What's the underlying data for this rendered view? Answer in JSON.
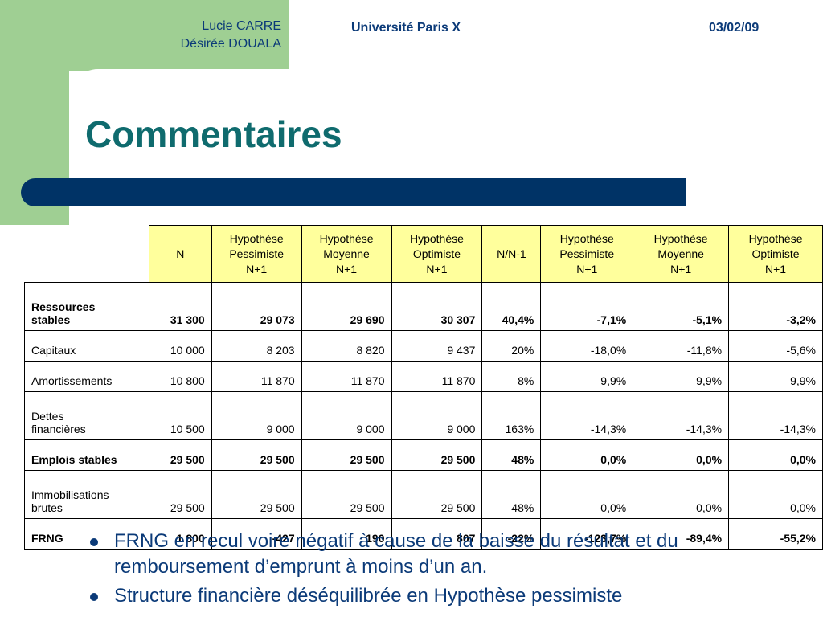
{
  "header": {
    "author1": "Lucie CARRE",
    "author2": "Désirée DOUALA",
    "university": "Université Paris X",
    "date": "03/02/09"
  },
  "slide": {
    "title": "Commentaires"
  },
  "table": {
    "headers": [
      "N",
      "Hypothèse Pessimiste N+1",
      "Hypothèse Moyenne N+1",
      "Hypothèse Optimiste N+1",
      "N/N-1",
      "Hypothèse Pessimiste N+1",
      "Hypothèse Moyenne N+1",
      "Hypothèse Optimiste N+1"
    ],
    "headers_lines": [
      [
        "N"
      ],
      [
        "Hypothèse",
        "Pessimiste",
        "N+1"
      ],
      [
        "Hypothèse",
        "Moyenne",
        "N+1"
      ],
      [
        "Hypothèse",
        "Optimiste",
        "N+1"
      ],
      [
        "N/N-1"
      ],
      [
        "Hypothèse",
        "Pessimiste",
        "N+1"
      ],
      [
        "Hypothèse",
        "Moyenne",
        "N+1"
      ],
      [
        "Hypothèse",
        "Optimiste",
        "N+1"
      ]
    ],
    "rows": [
      {
        "label": "Ressources stables",
        "label_lines": [
          "Ressources",
          "stables"
        ],
        "bold": true,
        "cells": [
          "31 300",
          "29 073",
          "29 690",
          "30 307",
          "40,4%",
          "-7,1%",
          "-5,1%",
          "-3,2%"
        ]
      },
      {
        "label": "Capitaux",
        "label_lines": [
          "Capitaux"
        ],
        "bold": false,
        "cells": [
          "10 000",
          "8 203",
          "8 820",
          "9 437",
          "20%",
          "-18,0%",
          "-11,8%",
          "-5,6%"
        ]
      },
      {
        "label": "Amortissements",
        "label_lines": [
          "Amortissements"
        ],
        "bold": false,
        "cells": [
          "10 800",
          "11 870",
          "11 870",
          "11 870",
          "8%",
          "9,9%",
          "9,9%",
          "9,9%"
        ]
      },
      {
        "label": "Dettes financières",
        "label_lines": [
          "Dettes",
          "financières"
        ],
        "bold": false,
        "cells": [
          "10 500",
          "9 000",
          "9 000",
          "9 000",
          "163%",
          "-14,3%",
          "-14,3%",
          "-14,3%"
        ]
      },
      {
        "label": "Emplois stables",
        "label_lines": [
          "Emplois stables"
        ],
        "bold": true,
        "cells": [
          "29 500",
          "29 500",
          "29 500",
          "29 500",
          "48%",
          "0,0%",
          "0,0%",
          "0,0%"
        ]
      },
      {
        "label": "Immobilisations brutes",
        "label_lines": [
          "Immobilisations",
          "brutes"
        ],
        "bold": false,
        "cells": [
          "29 500",
          "29 500",
          "29 500",
          "29 500",
          "48%",
          "0,0%",
          "0,0%",
          "0,0%"
        ]
      },
      {
        "label": "FRNG",
        "label_lines": [
          "FRNG"
        ],
        "bold": true,
        "cells": [
          "1 800",
          "-427",
          "190",
          "807",
          "-22%",
          "-123,7%",
          "-89,4%",
          "-55,2%"
        ]
      }
    ]
  },
  "bullets": [
    "FRNG en recul voire négatif à cause de la baisse du résultat et du remboursement d’emprunt à moins d’un an.",
    "Structure financière déséquilibrée en Hypothèse pessimiste"
  ],
  "colors": {
    "green": "#9fcf93",
    "navy": "#003366",
    "title_teal": "#0f6b6e",
    "header_fill": "#ffff9c"
  }
}
